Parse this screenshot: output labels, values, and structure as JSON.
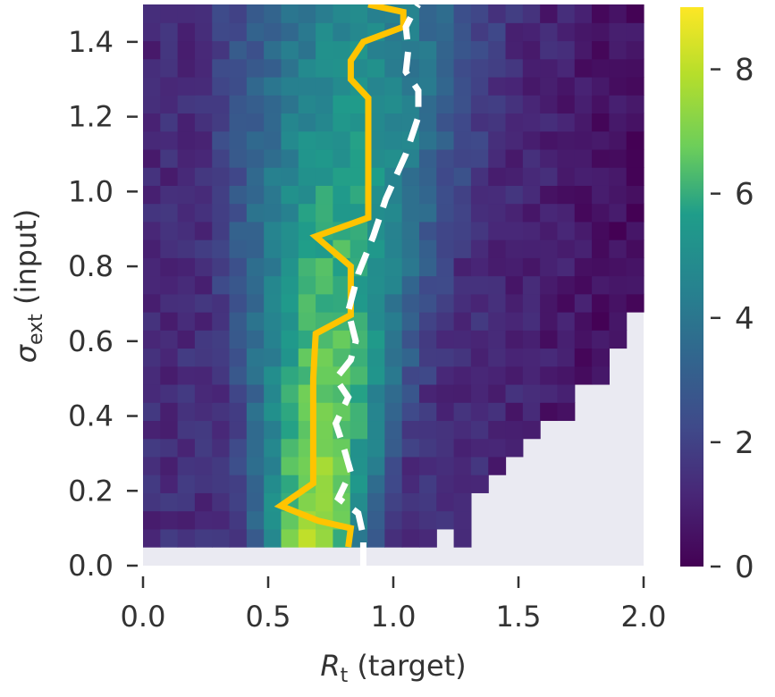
{
  "chart_data": {
    "type": "heatmap",
    "xlabel": {
      "symbol": "R",
      "sub": "t",
      "rest": " (target)"
    },
    "ylabel": {
      "symbol": "σ",
      "sub": "ext",
      "rest": " (input)"
    },
    "xlim": [
      0.0,
      2.0
    ],
    "ylim": [
      0.0,
      1.5
    ],
    "xticks": [
      "0.0",
      "0.5",
      "1.0",
      "1.5",
      "2.0"
    ],
    "xtick_values": [
      0.0,
      0.5,
      1.0,
      1.5,
      2.0
    ],
    "yticks": [
      "0.0",
      "0.2",
      "0.4",
      "0.6",
      "0.8",
      "1.0",
      "1.2",
      "1.4"
    ],
    "ytick_values": [
      0.0,
      0.2,
      0.4,
      0.6,
      0.8,
      1.0,
      1.2,
      1.4
    ],
    "colorbar": {
      "range": [
        0,
        9
      ],
      "ticks": [
        "0",
        "2",
        "4",
        "6",
        "8"
      ],
      "tick_values": [
        0,
        2,
        4,
        6,
        8
      ],
      "colormap": "viridis"
    },
    "missing_color": "#eaeaf2",
    "grid_x_bins": 29,
    "grid_y_bins": 30,
    "grid_y_start": 0.05,
    "ridge": {
      "center": [
        0.67,
        0.7,
        0.72,
        0.74,
        0.76,
        0.79,
        0.83,
        0.86
      ],
      "at_sigma": [
        0.05,
        0.2,
        0.4,
        0.6,
        0.8,
        1.0,
        1.2,
        1.5
      ],
      "peak": 7.9,
      "width": 0.22
    },
    "series": [
      {
        "name": "",
        "style": "solid",
        "color": "#ffc400",
        "x": [
          0.82,
          0.83,
          0.7,
          0.55,
          0.68,
          0.68,
          0.68,
          0.69,
          0.83,
          0.83,
          0.69,
          0.9,
          0.9,
          0.9,
          0.9,
          0.9,
          0.83,
          0.83,
          0.88,
          1.04,
          1.04,
          0.9
        ],
        "y": [
          0.05,
          0.1,
          0.12,
          0.16,
          0.22,
          0.35,
          0.5,
          0.62,
          0.67,
          0.8,
          0.88,
          0.93,
          1.0,
          1.1,
          1.2,
          1.25,
          1.3,
          1.35,
          1.4,
          1.44,
          1.48,
          1.5
        ]
      },
      {
        "name": "",
        "style": "dashed",
        "color": "#ffffff",
        "x": [
          0.88,
          0.88,
          0.86,
          0.78,
          0.83,
          0.8,
          0.77,
          0.82,
          0.77,
          0.83,
          0.85,
          0.82,
          0.86,
          0.92,
          0.97,
          1.01,
          1.05,
          1.1,
          1.1,
          1.05,
          1.06,
          1.05,
          1.08,
          1.1
        ],
        "y": [
          0.0,
          0.08,
          0.14,
          0.18,
          0.25,
          0.32,
          0.38,
          0.45,
          0.5,
          0.55,
          0.6,
          0.68,
          0.78,
          0.88,
          0.98,
          1.04,
          1.1,
          1.2,
          1.27,
          1.32,
          1.38,
          1.44,
          1.48,
          1.5
        ]
      }
    ]
  }
}
